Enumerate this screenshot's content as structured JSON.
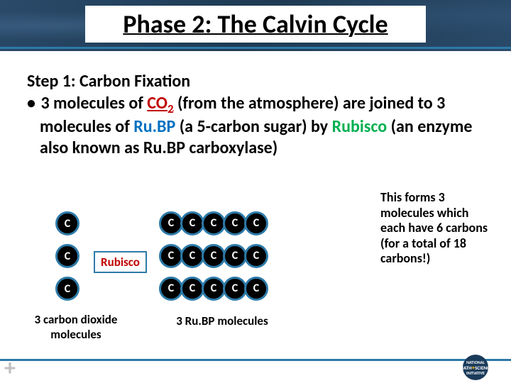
{
  "title": "Phase 2: The Calvin Cycle",
  "step_title": "Step 1: Carbon Fixation",
  "bullet_prefix": "3 molecules of ",
  "co2_text": "CO",
  "co2_sub": "2",
  "bullet_mid1": " (from the atmosphere) are joined to 3 molecules of ",
  "rubp_text": "Ru.BP",
  "bullet_mid2": " (a 5-carbon sugar) by ",
  "rubisco_text": "Rubisco",
  "bullet_end": " (an enzyme also known as Ru.BP carboxylase)",
  "side_note": "This forms 3 molecules which each have 6 carbons (for a total of 18 carbons!)",
  "diagram": {
    "carbon_label": "C",
    "co2_count": 3,
    "rubp_rows": 3,
    "rubp_carbons_per_row": 5,
    "rubisco_box": "Rubisco",
    "co2_caption": "3 carbon dioxide molecules",
    "rubp_caption": "3 Ru.BP molecules",
    "circle_fill": "#000000",
    "circle_border": "#2d7aa8",
    "circle_text_color": "#ffffff"
  },
  "colors": {
    "co2": "#c00000",
    "rubp": "#0070c0",
    "rubisco": "#00b050",
    "accent_line": "#2d7aa8",
    "header_bg": "#1e3a52"
  },
  "footer": {
    "plus": "+",
    "logo_line1": "NATIONAL",
    "logo_line2": "MATH",
    "logo_plus": "+",
    "logo_line3": "SCIENCE",
    "logo_line4": "INITIATIVE"
  }
}
